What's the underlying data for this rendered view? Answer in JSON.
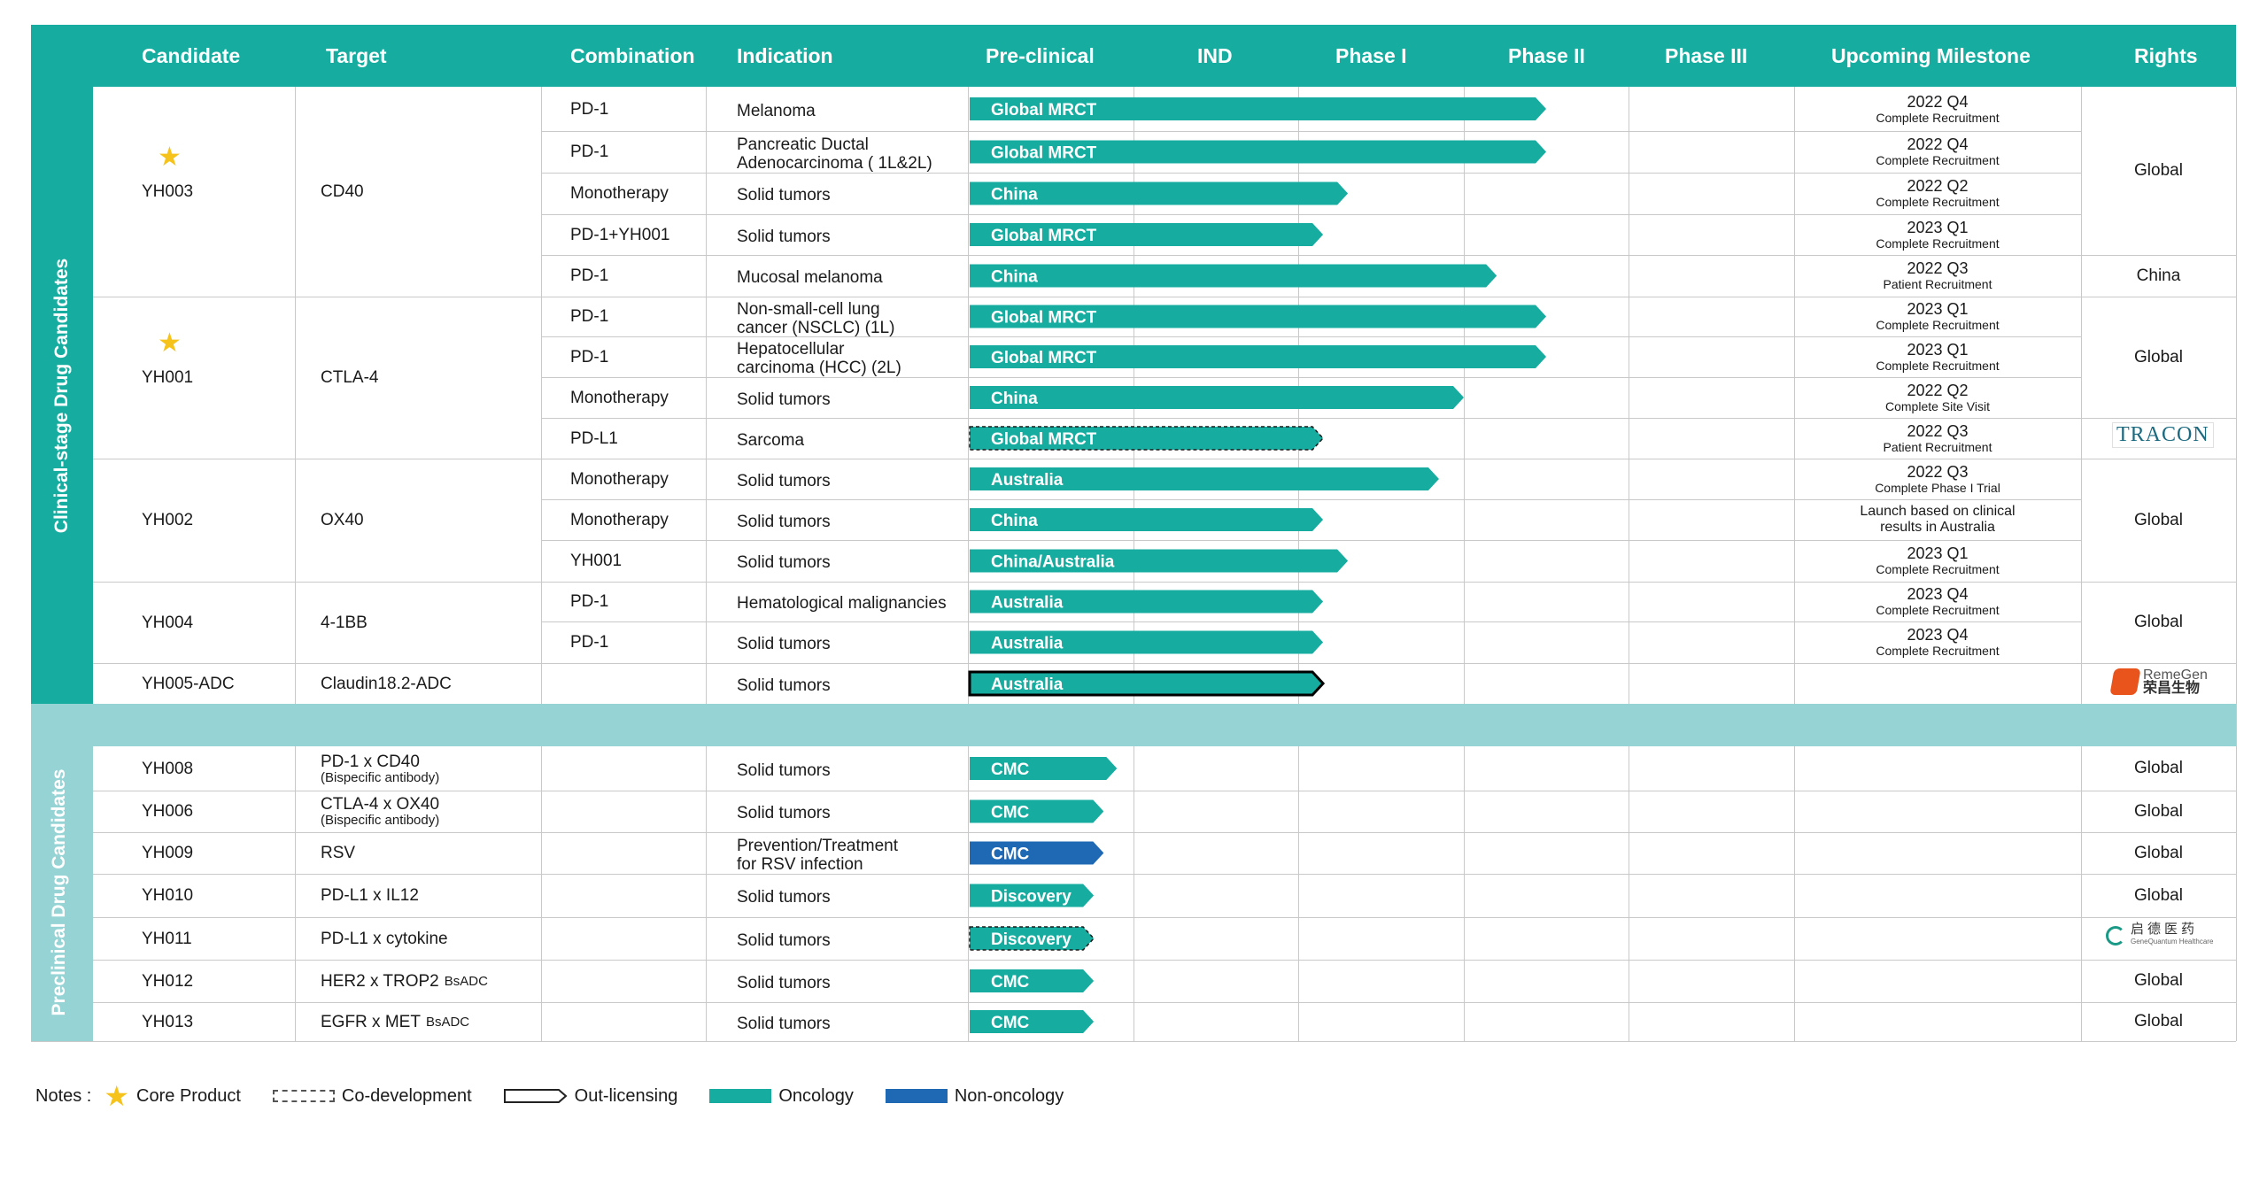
{
  "header": {
    "columns": [
      "Candidate",
      "Target",
      "Combination",
      "Indication",
      "Pre-clinical",
      "IND",
      "Phase I",
      "Phase II",
      "Phase III",
      "Upcoming Milestone",
      "Rights"
    ]
  },
  "sections": {
    "clinical": "Clinical-stage Drug Candidates",
    "preclinical": "Preclinical Drug Candidates"
  },
  "colors": {
    "oncology": "#16ada0",
    "non_oncology": "#1f68b4",
    "header": "#16ada0",
    "separator": "#95d3d5",
    "star": "#f5c31b"
  },
  "stages": [
    "Pre-clinical",
    "IND",
    "Phase I",
    "Phase II",
    "Phase III"
  ],
  "groups": [
    {
      "candidate": "YH003",
      "core": true,
      "target": "CD40",
      "target_sub": ""
    },
    {
      "candidate": "YH001",
      "core": true,
      "target": "CTLA-4",
      "target_sub": ""
    },
    {
      "candidate": "YH002",
      "core": false,
      "target": "OX40",
      "target_sub": ""
    },
    {
      "candidate": "YH004",
      "core": false,
      "target": "4-1BB",
      "target_sub": ""
    },
    {
      "candidate": "YH005-ADC",
      "core": false,
      "target": "Claudin18.2-ADC",
      "target_sub": ""
    },
    {
      "candidate": "YH008",
      "core": false,
      "target": "PD-1 x CD40",
      "target_sub": "(Bispecific antibody)"
    },
    {
      "candidate": "YH006",
      "core": false,
      "target": "CTLA-4 x OX40",
      "target_sub": "(Bispecific antibody)"
    },
    {
      "candidate": "YH009",
      "core": false,
      "target": "RSV",
      "target_sub": ""
    },
    {
      "candidate": "YH010",
      "core": false,
      "target": "PD-L1 x IL12",
      "target_sub": ""
    },
    {
      "candidate": "YH011",
      "core": false,
      "target": "PD-L1 x cytokine",
      "target_sub": ""
    },
    {
      "candidate": "YH012",
      "core": false,
      "target": "HER2 x TROP2",
      "target_sub": "BsADC"
    },
    {
      "candidate": "YH013",
      "core": false,
      "target": "EGFR x MET",
      "target_sub": "BsADC"
    }
  ],
  "rows": [
    {
      "combination": "PD-1",
      "indication": [
        "Melanoma"
      ],
      "bar_label": "Global MRCT",
      "progress": 3.5,
      "style": "solid",
      "color": "oncology",
      "milestone": [
        "2022 Q4",
        "Complete Recruitment"
      ]
    },
    {
      "combination": "PD-1",
      "indication": [
        "Pancreatic Ductal",
        "Adenocarcinoma ( 1L&2L)"
      ],
      "bar_label": "Global MRCT",
      "progress": 3.5,
      "style": "solid",
      "color": "oncology",
      "milestone": [
        "2022 Q4",
        "Complete Recruitment"
      ]
    },
    {
      "combination": "Monotherapy",
      "indication": [
        "Solid tumors"
      ],
      "bar_label": "China",
      "progress": 2.3,
      "style": "solid",
      "color": "oncology",
      "milestone": [
        "2022 Q2",
        "Complete Recruitment"
      ]
    },
    {
      "combination": "PD-1+YH001",
      "indication": [
        "Solid tumors"
      ],
      "bar_label": "Global MRCT",
      "progress": 2.15,
      "style": "solid",
      "color": "oncology",
      "milestone": [
        "2023 Q1",
        "Complete Recruitment"
      ]
    },
    {
      "combination": "PD-1",
      "indication": [
        "Mucosal melanoma"
      ],
      "bar_label": "China",
      "progress": 3.2,
      "style": "solid",
      "color": "oncology",
      "milestone": [
        "2022 Q3",
        "Patient Recruitment"
      ]
    },
    {
      "combination": "PD-1",
      "indication": [
        "Non-small-cell lung",
        "cancer (NSCLC) (1L)"
      ],
      "bar_label": "Global MRCT",
      "progress": 3.5,
      "style": "solid",
      "color": "oncology",
      "milestone": [
        "2023 Q1",
        "Complete Recruitment"
      ]
    },
    {
      "combination": "PD-1",
      "indication": [
        "Hepatocellular",
        "carcinoma (HCC) (2L)"
      ],
      "bar_label": "Global MRCT",
      "progress": 3.5,
      "style": "solid",
      "color": "oncology",
      "milestone": [
        "2023 Q1",
        "Complete Recruitment"
      ]
    },
    {
      "combination": "Monotherapy",
      "indication": [
        "Solid tumors"
      ],
      "bar_label": "China",
      "progress": 3.0,
      "style": "solid",
      "color": "oncology",
      "milestone": [
        "2022 Q2",
        "Complete Site Visit"
      ]
    },
    {
      "combination": "PD-L1",
      "indication": [
        "Sarcoma"
      ],
      "bar_label": "Global MRCT",
      "progress": 2.15,
      "style": "dashed",
      "color": "oncology",
      "milestone": [
        "2022 Q3",
        "Patient Recruitment"
      ]
    },
    {
      "combination": "Monotherapy",
      "indication": [
        "Solid tumors"
      ],
      "bar_label": "Australia",
      "progress": 2.85,
      "style": "solid",
      "color": "oncology",
      "milestone": [
        "2022 Q3",
        "Complete Phase I Trial"
      ]
    },
    {
      "combination": "Monotherapy",
      "indication": [
        "Solid tumors"
      ],
      "bar_label": "China",
      "progress": 2.15,
      "style": "solid",
      "color": "oncology",
      "milestone": [
        "Launch based on clinical",
        "results in Australia"
      ]
    },
    {
      "combination": "YH001",
      "indication": [
        "Solid tumors"
      ],
      "bar_label": "China/Australia",
      "progress": 2.3,
      "style": "solid",
      "color": "oncology",
      "milestone": [
        "2023 Q1",
        "Complete Recruitment"
      ]
    },
    {
      "combination": "PD-1",
      "indication": [
        "Hematological malignancies"
      ],
      "bar_label": "Australia",
      "progress": 2.15,
      "style": "solid",
      "color": "oncology",
      "milestone": [
        "2023 Q4",
        "Complete Recruitment"
      ]
    },
    {
      "combination": "PD-1",
      "indication": [
        "Solid tumors"
      ],
      "bar_label": "Australia",
      "progress": 2.15,
      "style": "solid",
      "color": "oncology",
      "milestone": [
        "2023 Q4",
        "Complete Recruitment"
      ]
    },
    {
      "combination": "",
      "indication": [
        "Solid tumors"
      ],
      "bar_label": "Australia",
      "progress": 2.15,
      "style": "outlined",
      "color": "oncology",
      "milestone": [
        "",
        ""
      ]
    },
    {
      "combination": "",
      "indication": [
        "Solid tumors"
      ],
      "bar_label": "CMC",
      "progress": 0.9,
      "style": "solid",
      "color": "oncology",
      "milestone": [
        "",
        ""
      ]
    },
    {
      "combination": "",
      "indication": [
        "Solid tumors"
      ],
      "bar_label": "CMC",
      "progress": 0.82,
      "style": "solid",
      "color": "oncology",
      "milestone": [
        "",
        ""
      ]
    },
    {
      "combination": "",
      "indication": [
        "Prevention/Treatment",
        "for RSV infection"
      ],
      "bar_label": "CMC",
      "progress": 0.82,
      "style": "solid",
      "color": "non_oncology",
      "milestone": [
        "",
        ""
      ]
    },
    {
      "combination": "",
      "indication": [
        "Solid tumors"
      ],
      "bar_label": "Discovery",
      "progress": 0.76,
      "style": "solid",
      "color": "oncology",
      "milestone": [
        "",
        ""
      ]
    },
    {
      "combination": "",
      "indication": [
        "Solid tumors"
      ],
      "bar_label": "Discovery",
      "progress": 0.76,
      "style": "dashed",
      "color": "oncology",
      "milestone": [
        "",
        ""
      ]
    },
    {
      "combination": "",
      "indication": [
        "Solid tumors"
      ],
      "bar_label": "CMC",
      "progress": 0.76,
      "style": "solid",
      "color": "oncology",
      "milestone": [
        "",
        ""
      ]
    },
    {
      "combination": "",
      "indication": [
        "Solid tumors"
      ],
      "bar_label": "CMC",
      "progress": 0.76,
      "style": "solid",
      "color": "oncology",
      "milestone": [
        "",
        ""
      ]
    }
  ],
  "rights": {
    "yh003_global": "Global",
    "yh003_china": "China",
    "yh001_global": "Global",
    "tracon_logo": "TRACON",
    "yh002_global": "Global",
    "yh004_global": "Global",
    "remegen_logo_en": "RemeGen",
    "remegen_logo_cn": "荣昌生物",
    "pre": [
      "Global",
      "Global",
      "Global",
      "Global",
      "",
      "Global",
      "Global"
    ],
    "genequantum_logo_cn": "启德医药",
    "genequantum_logo_en": "GeneQuantum Healthcare"
  },
  "legend": {
    "notes": "Notes :",
    "core": "Core Product",
    "co_dev": "Co-development",
    "out_lic": "Out-licensing",
    "oncology": "Oncology",
    "non_oncology": "Non-oncology"
  }
}
